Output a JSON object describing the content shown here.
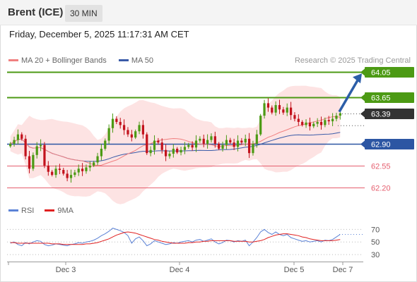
{
  "header": {
    "instrument": "Brent (ICE)",
    "interval": "30 MIN",
    "timestamp": "Friday, December 5, 2025 11:17:31 AM CET"
  },
  "legend": {
    "ma20_label": "MA 20 + Bollinger Bands",
    "ma50_label": "MA 50",
    "credit": "Research © 2025 Trading Central"
  },
  "rsi_legend": {
    "rsi_label": "RSI",
    "ma9_label": "9MA"
  },
  "colors": {
    "resistance": "#4c9a14",
    "current": "#333333",
    "pivot": "#2c56a3",
    "support": "#e55e6e",
    "up_candle": "#4c9a14",
    "down_candle": "#c2121c",
    "ma20": "#f08080",
    "ma50": "#3a5ba8",
    "bollinger_fill": "#fcdada",
    "rsi": "#5b82d6",
    "rsi_ma": "#e02020",
    "arrow": "#2c5ea8"
  },
  "chart_data": [
    {
      "type": "candlestick",
      "ylim": [
        62.13,
        64.12
      ],
      "x_ticks": [
        "Dec 3",
        "Dec 4",
        "Dec 5",
        "Dec 7"
      ],
      "levels": [
        {
          "name": "resistance-2",
          "value": "64.05",
          "role": "resistance"
        },
        {
          "name": "resistance-1",
          "value": "63.65",
          "role": "resistance"
        },
        {
          "name": "current-price",
          "value": "63.39",
          "role": "current"
        },
        {
          "name": "pivot",
          "value": "62.90",
          "role": "pivot"
        },
        {
          "name": "support-1",
          "value": "62.55",
          "role": "support"
        },
        {
          "name": "support-2",
          "value": "62.20",
          "role": "support"
        }
      ],
      "closes": [
        62.9,
        62.96,
        63.05,
        62.98,
        62.7,
        62.5,
        62.72,
        62.86,
        62.88,
        62.55,
        62.45,
        62.4,
        62.5,
        62.48,
        62.42,
        62.35,
        62.4,
        62.44,
        62.5,
        62.46,
        62.52,
        62.55,
        62.6,
        62.7,
        62.82,
        62.95,
        63.15,
        63.3,
        63.25,
        63.2,
        63.12,
        63.05,
        63.0,
        63.1,
        63.2,
        63.05,
        62.75,
        62.8,
        62.95,
        62.92,
        62.8,
        62.7,
        62.74,
        62.82,
        62.76,
        62.8,
        62.85,
        62.88,
        62.84,
        62.95,
        62.98,
        62.9,
        62.96,
        63.02,
        62.9,
        62.82,
        62.88,
        62.96,
        62.92,
        62.85,
        62.95,
        62.92,
        62.98,
        62.75,
        62.9,
        63.05,
        63.35,
        63.55,
        63.48,
        63.4,
        63.52,
        63.45,
        63.4,
        63.48,
        63.36,
        63.3,
        63.25,
        63.2,
        63.24,
        63.18,
        63.22,
        63.25,
        63.2,
        63.28,
        63.26,
        63.3,
        63.35,
        63.39
      ]
    },
    {
      "type": "line",
      "ylim": [
        20,
        85
      ],
      "y_ticks": [
        "70",
        "50",
        "30"
      ],
      "series": [
        {
          "name": "RSI",
          "values": [
            48,
            50,
            46,
            44,
            49,
            47,
            50,
            52,
            51,
            46,
            44,
            45,
            47,
            46,
            45,
            44,
            46,
            47,
            49,
            48,
            50,
            51,
            53,
            56,
            60,
            63,
            67,
            72,
            70,
            68,
            65,
            60,
            48,
            55,
            58,
            52,
            44,
            47,
            52,
            50,
            48,
            46,
            47,
            49,
            48,
            50,
            51,
            52,
            50,
            53,
            54,
            51,
            53,
            55,
            50,
            47,
            49,
            53,
            52,
            50,
            52,
            51,
            53,
            44,
            50,
            57,
            66,
            70,
            65,
            62,
            66,
            62,
            60,
            62,
            57,
            55,
            53,
            51,
            52,
            50,
            51,
            52,
            50,
            53,
            52,
            54,
            58,
            62
          ]
        },
        {
          "name": "9MA",
          "values": [
            49,
            49,
            48,
            48,
            48,
            48,
            48,
            48,
            48,
            48,
            48,
            47,
            47,
            47,
            46,
            46,
            46,
            46,
            46,
            46,
            47,
            47,
            48,
            49,
            51,
            53,
            55,
            58,
            61,
            63,
            65,
            66,
            65,
            64,
            62,
            60,
            58,
            56,
            54,
            53,
            51,
            50,
            49,
            48,
            48,
            48,
            48,
            49,
            49,
            50,
            50,
            51,
            51,
            52,
            52,
            52,
            52,
            52,
            52,
            51,
            51,
            51,
            51,
            50,
            50,
            51,
            52,
            54,
            57,
            59,
            61,
            62,
            63,
            63,
            62,
            61,
            60,
            58,
            57,
            55,
            54,
            53,
            52,
            52,
            52,
            52,
            53,
            54
          ]
        }
      ]
    }
  ]
}
